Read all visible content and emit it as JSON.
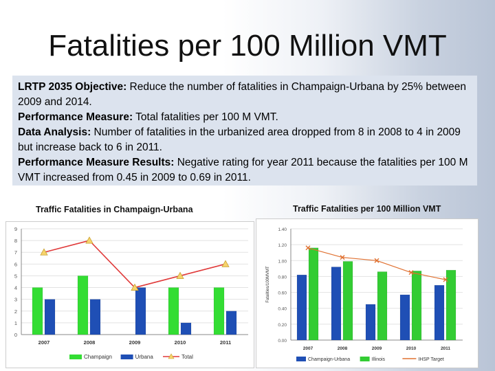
{
  "slide": {
    "title": "Fatalities per 100 Million VMT",
    "objective_label": "LRTP 2035 Objective:",
    "objective_text": " Reduce the number of fatalities in Champaign-Urbana by 25% between 2009 and 2014.",
    "measure_label": "Performance Measure:",
    "measure_text": " Total fatalities per 100 M VMT.",
    "analysis_label": "Data Analysis:",
    "analysis_text": " Number of fatalities in the urbanized area dropped from 8 in 2008 to 4 in 2009 but increase back to 6 in 2011.",
    "results_label": "Performance Measure Results:",
    "results_text": " Negative rating for year 2011 because the fatalities per 100 M VMT increased from 0.45 in 2009 to 0.69 in 2011."
  },
  "chart_data": [
    {
      "type": "bar",
      "title": "Traffic Fatalities in Champaign-Urbana",
      "categories": [
        "2007",
        "2008",
        "2009",
        "2010",
        "2011"
      ],
      "series": [
        {
          "name": "Champaign",
          "type": "bar",
          "color": "#33dd33",
          "values": [
            4,
            5,
            0,
            4,
            4
          ]
        },
        {
          "name": "Urbana",
          "type": "bar",
          "color": "#1f4fb5",
          "values": [
            3,
            3,
            4,
            1,
            2
          ]
        },
        {
          "name": "Total",
          "type": "line",
          "color": "#e03a3a",
          "values": [
            7,
            8,
            4,
            5,
            6
          ]
        }
      ],
      "ylim": [
        0,
        9
      ],
      "yticks": [
        "0",
        "1",
        "2",
        "3",
        "4",
        "5",
        "6",
        "7",
        "8",
        "9"
      ],
      "xlabel": "",
      "ylabel": ""
    },
    {
      "type": "bar",
      "title": "Traffic Fatalities per 100 Million VMT",
      "categories": [
        "2007",
        "2008",
        "2009",
        "2010",
        "2011"
      ],
      "series": [
        {
          "name": "Champaign-Urbana",
          "type": "bar",
          "color": "#1f4fb5",
          "values": [
            0.82,
            0.92,
            0.45,
            0.57,
            0.69
          ]
        },
        {
          "name": "Illinois",
          "type": "bar",
          "color": "#33cc33",
          "values": [
            1.16,
            0.99,
            0.86,
            0.87,
            0.88
          ]
        },
        {
          "name": "IHSP Target",
          "type": "line",
          "color": "#e07030",
          "values": [
            1.16,
            1.04,
            1.0,
            0.85,
            0.76
          ]
        }
      ],
      "ylim": [
        0,
        1.4
      ],
      "yticks": [
        "0.00",
        "0.20",
        "0.40",
        "0.60",
        "0.80",
        "1.00",
        "1.20",
        "1.40"
      ],
      "xlabel": "",
      "ylabel": "Fatalities/100MVMT"
    }
  ]
}
